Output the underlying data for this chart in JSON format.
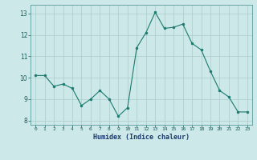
{
  "x": [
    0,
    1,
    2,
    3,
    4,
    5,
    6,
    7,
    8,
    9,
    10,
    11,
    12,
    13,
    14,
    15,
    16,
    17,
    18,
    19,
    20,
    21,
    22,
    23
  ],
  "y": [
    10.1,
    10.1,
    9.6,
    9.7,
    9.5,
    8.7,
    9.0,
    9.4,
    9.0,
    8.2,
    8.6,
    11.4,
    12.1,
    13.05,
    12.3,
    12.35,
    12.5,
    11.6,
    11.3,
    10.3,
    9.4,
    9.1,
    8.4,
    8.4
  ],
  "line_color": "#1a7a6e",
  "marker_color": "#1a7a6e",
  "bg_color": "#cce8e8",
  "grid_color": "#aacccc",
  "xlabel": "Humidex (Indice chaleur)",
  "xlim": [
    -0.5,
    23.5
  ],
  "ylim": [
    7.8,
    13.4
  ],
  "yticks": [
    8,
    9,
    10,
    11,
    12,
    13
  ],
  "xtick_labels": [
    "0",
    "1",
    "2",
    "3",
    "4",
    "5",
    "6",
    "7",
    "8",
    "9",
    "10",
    "11",
    "12",
    "13",
    "14",
    "15",
    "16",
    "17",
    "18",
    "19",
    "20",
    "21",
    "22",
    "23"
  ]
}
